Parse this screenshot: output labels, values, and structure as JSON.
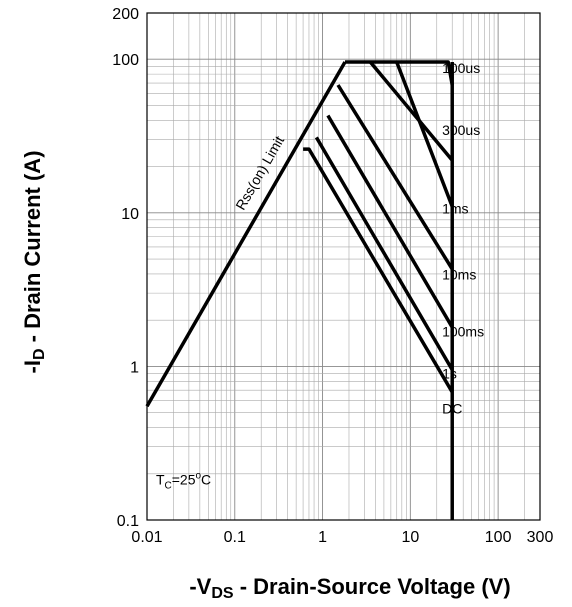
{
  "chart_data": {
    "type": "line",
    "title": "",
    "xscale": "log",
    "yscale": "log",
    "xlim": [
      0.01,
      300
    ],
    "ylim": [
      0.1,
      200
    ],
    "grid": true,
    "xlabel": {
      "prefix": "-V",
      "sub": "DS",
      "suffix": " - Drain-Source Voltage (V)"
    },
    "ylabel": {
      "prefix": "-I",
      "sub": "D",
      "suffix": " - Drain Current (A)"
    },
    "xticks": [
      {
        "value": 0.01,
        "label": "0.01"
      },
      {
        "value": 0.1,
        "label": "0.1"
      },
      {
        "value": 1,
        "label": "1"
      },
      {
        "value": 10,
        "label": "10"
      },
      {
        "value": 100,
        "label": "100"
      },
      {
        "value": 300,
        "label": "300"
      }
    ],
    "yticks": [
      {
        "value": 0.1,
        "label": "0.1"
      },
      {
        "value": 1,
        "label": "1"
      },
      {
        "value": 10,
        "label": "10"
      },
      {
        "value": 100,
        "label": "100"
      },
      {
        "value": 200,
        "label": "200"
      }
    ],
    "rds_limit": {
      "label": "Rss(on) Limit",
      "points": [
        [
          0.01,
          0.55
        ],
        [
          1.8,
          96
        ]
      ]
    },
    "series": [
      {
        "name": "100us",
        "label_at": [
          23,
          86
        ],
        "points": [
          [
            1.8,
            96
          ],
          [
            27,
            96
          ],
          [
            30,
            68
          ]
        ]
      },
      {
        "name": "300us",
        "label_at": [
          23,
          34
        ],
        "points": [
          [
            3.5,
            96
          ],
          [
            30,
            22
          ]
        ]
      },
      {
        "name": "1ms",
        "label_at": [
          23,
          10.5
        ],
        "points": [
          [
            7,
            96
          ],
          [
            30,
            11
          ]
        ]
      },
      {
        "name": "10ms",
        "label_at": [
          23,
          3.9
        ],
        "points": [
          [
            1.5,
            68
          ],
          [
            30,
            4.3
          ]
        ]
      },
      {
        "name": "100ms",
        "label_at": [
          23,
          1.65
        ],
        "points": [
          [
            1.15,
            43
          ],
          [
            30,
            1.8
          ]
        ]
      },
      {
        "name": "1s",
        "label_at": [
          23,
          0.88
        ],
        "points": [
          [
            0.85,
            31
          ],
          [
            30,
            0.95
          ]
        ]
      },
      {
        "name": "DC",
        "label_at": [
          23,
          0.52
        ],
        "points": [
          [
            0.6,
            26
          ],
          [
            0.7,
            26
          ],
          [
            30,
            0.68
          ]
        ]
      }
    ],
    "vdss_limit": {
      "x": 30,
      "ymin": 0.1,
      "ymax": 96
    },
    "annotations": [
      {
        "text_main": "T",
        "text_sub": "C",
        "text_rest": "=25",
        "text_sup": "o",
        "text_end": "C",
        "at": [
          0.012,
          0.17
        ]
      }
    ]
  }
}
